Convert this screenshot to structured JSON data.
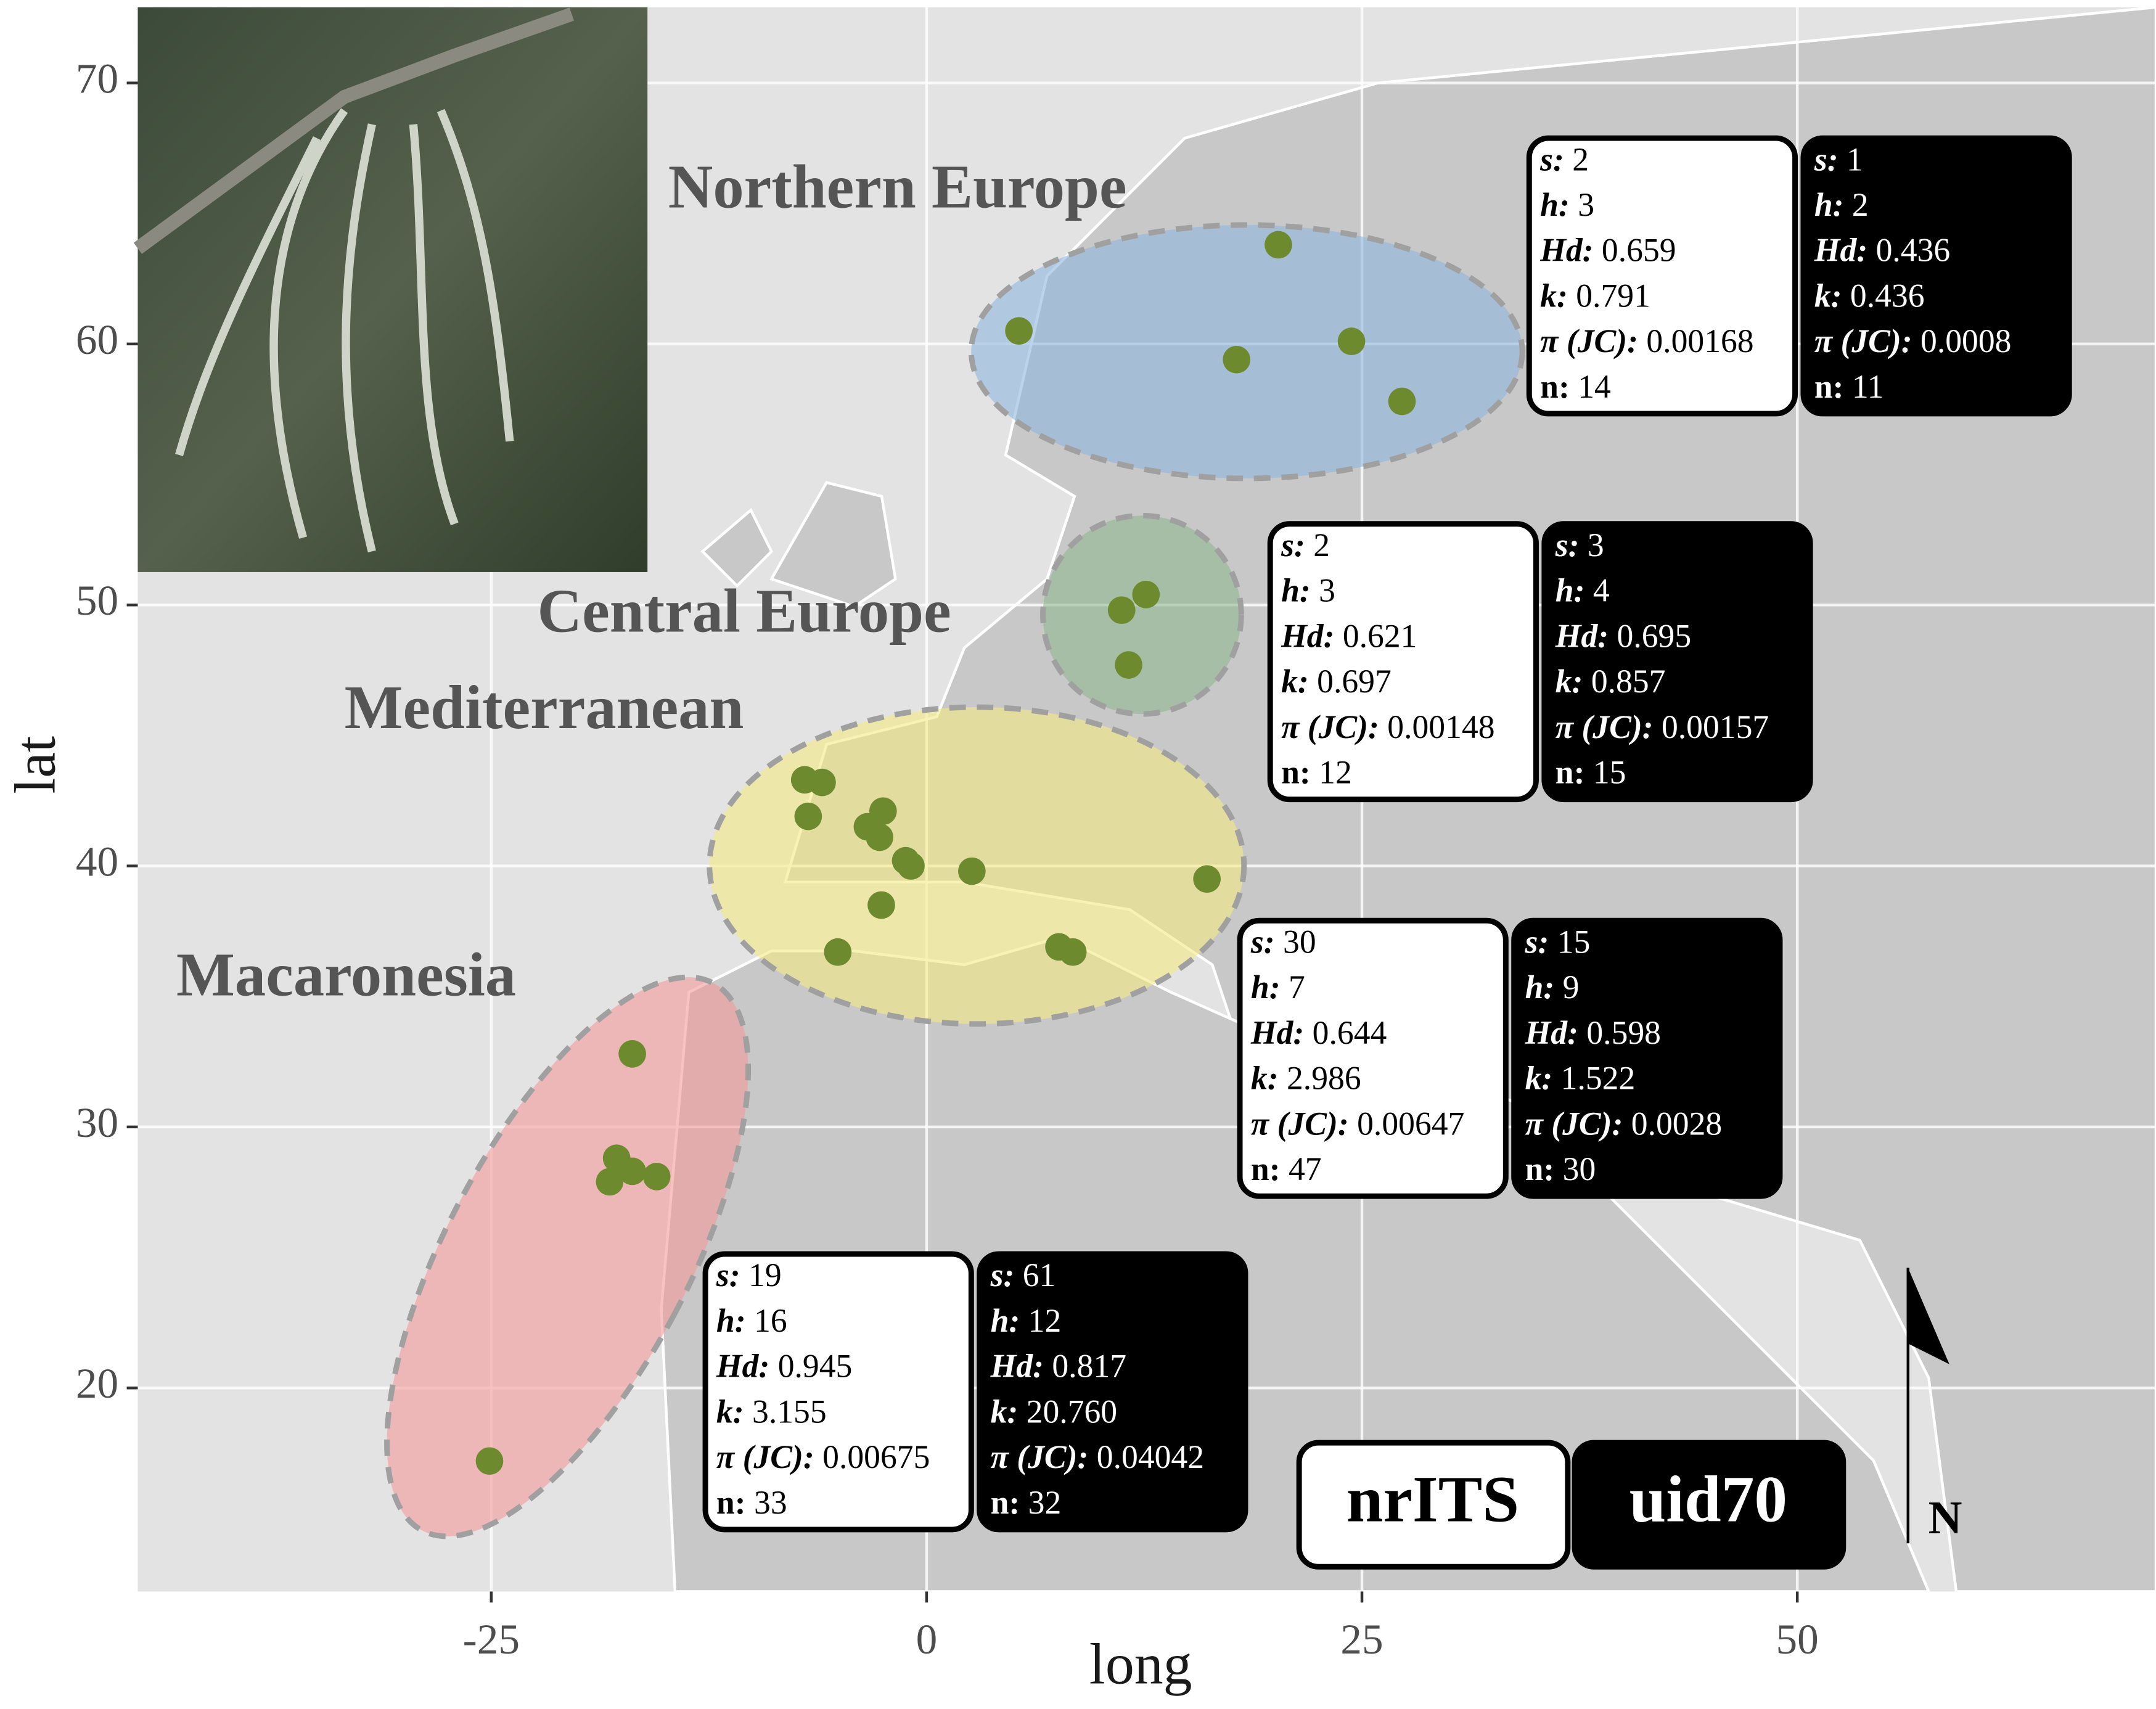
{
  "chart_data": {
    "type": "scatter",
    "x_label": "long",
    "y_label": "lat",
    "xlim": [
      -45.3,
      70.6
    ],
    "ylim": [
      12.2,
      72.9
    ],
    "xticks": [
      -25,
      0,
      25,
      50
    ],
    "yticks": [
      20,
      30,
      40,
      50,
      60,
      70
    ],
    "grid": true,
    "point_color": "#6d8b2e",
    "north_label": "N",
    "markers": [
      {
        "name": "nrITS",
        "fill": "#ffffff",
        "text_color": "#000000"
      },
      {
        "name": "uid70",
        "fill": "#000000",
        "text_color": "#ffffff"
      }
    ],
    "stat_labels": [
      "s:",
      "h:",
      "Hd:",
      "k:",
      "π (JC):",
      "n:"
    ],
    "regions": [
      {
        "name": "Northern Europe",
        "color": "#8db6de",
        "x": [
          5.3,
          20.2,
          17.8,
          24.4,
          27.3
        ],
        "y": [
          60.5,
          63.8,
          59.4,
          60.1,
          57.8
        ],
        "stats": [
          [
            "2",
            "3",
            "0.659",
            "0.791",
            "0.00168",
            "14"
          ],
          [
            "1",
            "2",
            "0.436",
            "0.436",
            "0.0008",
            "11"
          ]
        ]
      },
      {
        "name": "Central Europe",
        "color": "#8fb88f",
        "x": [
          11.2,
          12.6,
          11.6
        ],
        "y": [
          49.8,
          50.4,
          47.7
        ],
        "stats": [
          [
            "2",
            "3",
            "0.621",
            "0.697",
            "0.00148",
            "12"
          ],
          [
            "3",
            "4",
            "0.695",
            "0.857",
            "0.00157",
            "15"
          ]
        ]
      },
      {
        "name": "Mediterranean",
        "color": "#f3ea84",
        "x": [
          -7.0,
          -6.0,
          -6.8,
          -2.5,
          -3.4,
          -2.7,
          -1.2,
          -0.9,
          2.6,
          -2.6,
          -5.1,
          16.1,
          7.6,
          8.4
        ],
        "y": [
          43.3,
          43.2,
          41.9,
          42.1,
          41.5,
          41.1,
          40.2,
          40.0,
          39.8,
          38.5,
          36.7,
          39.5,
          36.9,
          36.7
        ],
        "stats": [
          [
            "30",
            "7",
            "0.644",
            "2.986",
            "0.00647",
            "47"
          ],
          [
            "15",
            "9",
            "0.598",
            "1.522",
            "0.0028",
            "30"
          ]
        ]
      },
      {
        "name": "Macaronesia",
        "color": "#f39a9a",
        "x": [
          -16.9,
          -17.8,
          -18.2,
          -16.9,
          -15.5,
          -25.1
        ],
        "y": [
          32.8,
          28.8,
          27.9,
          28.3,
          28.1,
          17.2
        ],
        "stats": [
          [
            "19",
            "16",
            "0.945",
            "3.155",
            "0.00675",
            "33"
          ],
          [
            "61",
            "12",
            "0.817",
            "20.760",
            "0.04042",
            "32"
          ]
        ]
      }
    ]
  }
}
